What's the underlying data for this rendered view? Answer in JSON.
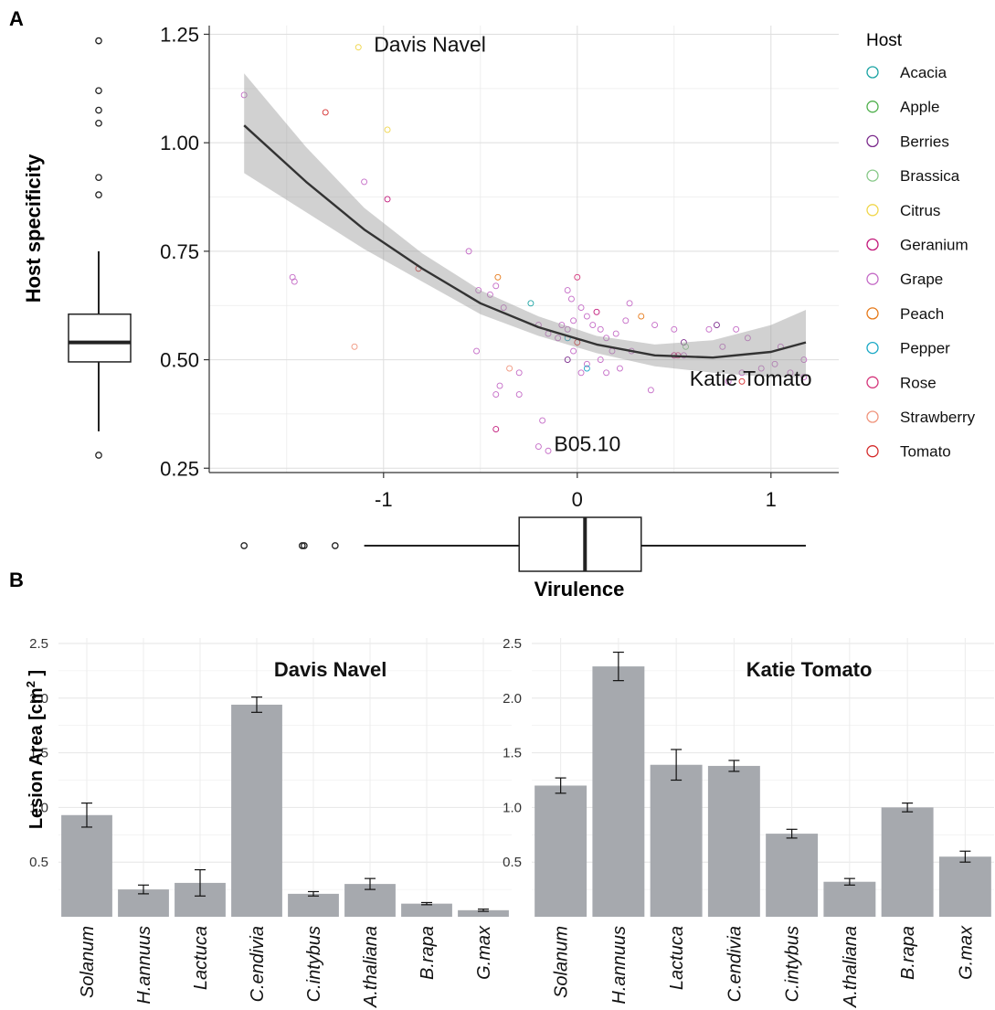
{
  "chart_data": [
    {
      "panel_label": "A",
      "type": "scatter",
      "xlabel": "Virulence",
      "ylabel": "Host specificity",
      "xlim": [
        -1.9,
        1.35
      ],
      "ylim": [
        0.24,
        1.27
      ],
      "x_ticks": [
        {
          "v": -1,
          "label": "-1"
        },
        {
          "v": 0,
          "label": "0"
        },
        {
          "v": 1,
          "label": "1"
        }
      ],
      "y_ticks": [
        {
          "v": 0.25,
          "label": "0.25"
        },
        {
          "v": 0.5,
          "label": "0.50"
        },
        {
          "v": 0.75,
          "label": "0.75"
        },
        {
          "v": 1.0,
          "label": "1.00"
        },
        {
          "v": 1.25,
          "label": "1.25"
        }
      ],
      "grid": true,
      "legend": {
        "title": "Host",
        "placement": "right",
        "entries": [
          {
            "name": "Acacia",
            "color": "#1aa3a3"
          },
          {
            "name": "Apple",
            "color": "#4daf4a"
          },
          {
            "name": "Berries",
            "color": "#7b2a8c"
          },
          {
            "name": "Brassica",
            "color": "#88c989"
          },
          {
            "name": "Citrus",
            "color": "#f0d64a"
          },
          {
            "name": "Geranium",
            "color": "#c2187a"
          },
          {
            "name": "Grape",
            "color": "#c46ac6"
          },
          {
            "name": "Peach",
            "color": "#e67817"
          },
          {
            "name": "Pepper",
            "color": "#1ba9c6"
          },
          {
            "name": "Rose",
            "color": "#d4347a"
          },
          {
            "name": "Strawberry",
            "color": "#f0957d"
          },
          {
            "name": "Tomato",
            "color": "#d42a2a"
          }
        ]
      },
      "annotations": [
        {
          "text": "Davis Navel",
          "x": -1.05,
          "y": 1.21
        },
        {
          "text": "Katie Tomato",
          "x": 0.58,
          "y": 0.44
        },
        {
          "text": "B05.10",
          "x": -0.12,
          "y": 0.29
        }
      ],
      "fit": {
        "x": [
          -1.72,
          -1.4,
          -1.1,
          -0.8,
          -0.5,
          -0.2,
          0.1,
          0.4,
          0.7,
          1.0,
          1.18
        ],
        "y": [
          1.04,
          0.91,
          0.8,
          0.71,
          0.63,
          0.575,
          0.535,
          0.51,
          0.505,
          0.518,
          0.54
        ],
        "lower": [
          0.93,
          0.84,
          0.755,
          0.68,
          0.605,
          0.555,
          0.515,
          0.485,
          0.47,
          0.46,
          0.46
        ],
        "upper": [
          1.16,
          0.99,
          0.85,
          0.745,
          0.66,
          0.6,
          0.555,
          0.535,
          0.545,
          0.58,
          0.615
        ]
      },
      "points": [
        {
          "x": -1.13,
          "y": 1.22,
          "host": "Citrus"
        },
        {
          "x": -1.72,
          "y": 1.11,
          "host": "Grape"
        },
        {
          "x": -1.3,
          "y": 1.07,
          "host": "Tomato"
        },
        {
          "x": -0.98,
          "y": 1.03,
          "host": "Citrus"
        },
        {
          "x": -1.1,
          "y": 0.91,
          "host": "Grape"
        },
        {
          "x": -0.98,
          "y": 0.87,
          "host": "Geranium"
        },
        {
          "x": -1.47,
          "y": 0.69,
          "host": "Grape"
        },
        {
          "x": -1.46,
          "y": 0.68,
          "host": "Grape"
        },
        {
          "x": -1.15,
          "y": 0.53,
          "host": "Strawberry"
        },
        {
          "x": -0.82,
          "y": 0.71,
          "host": "Tomato"
        },
        {
          "x": -0.56,
          "y": 0.75,
          "host": "Grape"
        },
        {
          "x": -0.51,
          "y": 0.66,
          "host": "Grape"
        },
        {
          "x": -0.45,
          "y": 0.65,
          "host": "Grape"
        },
        {
          "x": -0.41,
          "y": 0.69,
          "host": "Peach"
        },
        {
          "x": -0.52,
          "y": 0.52,
          "host": "Grape"
        },
        {
          "x": -0.42,
          "y": 0.67,
          "host": "Grape"
        },
        {
          "x": -0.38,
          "y": 0.62,
          "host": "Grape"
        },
        {
          "x": -0.35,
          "y": 0.48,
          "host": "Strawberry"
        },
        {
          "x": -0.4,
          "y": 0.44,
          "host": "Grape"
        },
        {
          "x": -0.42,
          "y": 0.42,
          "host": "Grape"
        },
        {
          "x": -0.3,
          "y": 0.47,
          "host": "Grape"
        },
        {
          "x": -0.3,
          "y": 0.42,
          "host": "Grape"
        },
        {
          "x": -0.42,
          "y": 0.34,
          "host": "Geranium"
        },
        {
          "x": -0.18,
          "y": 0.36,
          "host": "Grape"
        },
        {
          "x": -0.2,
          "y": 0.3,
          "host": "Grape"
        },
        {
          "x": -0.15,
          "y": 0.29,
          "host": "Grape"
        },
        {
          "x": -0.24,
          "y": 0.63,
          "host": "Acacia"
        },
        {
          "x": -0.05,
          "y": 0.66,
          "host": "Grape"
        },
        {
          "x": -0.03,
          "y": 0.64,
          "host": "Grape"
        },
        {
          "x": -0.2,
          "y": 0.58,
          "host": "Grape"
        },
        {
          "x": -0.15,
          "y": 0.56,
          "host": "Grape"
        },
        {
          "x": -0.1,
          "y": 0.55,
          "host": "Grape"
        },
        {
          "x": -0.08,
          "y": 0.58,
          "host": "Grape"
        },
        {
          "x": -0.05,
          "y": 0.57,
          "host": "Grape"
        },
        {
          "x": -0.05,
          "y": 0.55,
          "host": "Pepper"
        },
        {
          "x": -0.02,
          "y": 0.59,
          "host": "Grape"
        },
        {
          "x": 0.0,
          "y": 0.69,
          "host": "Rose"
        },
        {
          "x": 0.02,
          "y": 0.62,
          "host": "Grape"
        },
        {
          "x": 0.05,
          "y": 0.6,
          "host": "Grape"
        },
        {
          "x": 0.08,
          "y": 0.58,
          "host": "Grape"
        },
        {
          "x": 0.1,
          "y": 0.61,
          "host": "Geranium"
        },
        {
          "x": 0.12,
          "y": 0.57,
          "host": "Grape"
        },
        {
          "x": 0.15,
          "y": 0.55,
          "host": "Grape"
        },
        {
          "x": 0.2,
          "y": 0.56,
          "host": "Grape"
        },
        {
          "x": 0.25,
          "y": 0.59,
          "host": "Grape"
        },
        {
          "x": 0.27,
          "y": 0.63,
          "host": "Grape"
        },
        {
          "x": 0.33,
          "y": 0.6,
          "host": "Peach"
        },
        {
          "x": 0.0,
          "y": 0.54,
          "host": "Tomato"
        },
        {
          "x": -0.05,
          "y": 0.5,
          "host": "Berries"
        },
        {
          "x": -0.02,
          "y": 0.52,
          "host": "Grape"
        },
        {
          "x": 0.05,
          "y": 0.49,
          "host": "Grape"
        },
        {
          "x": 0.05,
          "y": 0.48,
          "host": "Pepper"
        },
        {
          "x": 0.02,
          "y": 0.47,
          "host": "Grape"
        },
        {
          "x": 0.12,
          "y": 0.5,
          "host": "Grape"
        },
        {
          "x": 0.15,
          "y": 0.47,
          "host": "Grape"
        },
        {
          "x": 0.18,
          "y": 0.52,
          "host": "Grape"
        },
        {
          "x": 0.22,
          "y": 0.48,
          "host": "Grape"
        },
        {
          "x": 0.28,
          "y": 0.52,
          "host": "Grape"
        },
        {
          "x": 0.38,
          "y": 0.43,
          "host": "Grape"
        },
        {
          "x": 0.4,
          "y": 0.58,
          "host": "Grape"
        },
        {
          "x": 0.5,
          "y": 0.57,
          "host": "Grape"
        },
        {
          "x": 0.5,
          "y": 0.51,
          "host": "Geranium"
        },
        {
          "x": 0.52,
          "y": 0.51,
          "host": "Rose"
        },
        {
          "x": 0.55,
          "y": 0.51,
          "host": "Grape"
        },
        {
          "x": 0.55,
          "y": 0.54,
          "host": "Berries"
        },
        {
          "x": 0.56,
          "y": 0.53,
          "host": "Brassica"
        },
        {
          "x": 0.68,
          "y": 0.57,
          "host": "Grape"
        },
        {
          "x": 0.72,
          "y": 0.58,
          "host": "Berries"
        },
        {
          "x": 0.75,
          "y": 0.53,
          "host": "Grape"
        },
        {
          "x": 0.82,
          "y": 0.57,
          "host": "Grape"
        },
        {
          "x": 0.88,
          "y": 0.55,
          "host": "Grape"
        },
        {
          "x": 0.85,
          "y": 0.47,
          "host": "Grape"
        },
        {
          "x": 0.85,
          "y": 0.45,
          "host": "Tomato"
        },
        {
          "x": 0.78,
          "y": 0.45,
          "host": "Grape"
        },
        {
          "x": 0.95,
          "y": 0.48,
          "host": "Grape"
        },
        {
          "x": 1.02,
          "y": 0.49,
          "host": "Grape"
        },
        {
          "x": 1.05,
          "y": 0.53,
          "host": "Grape"
        },
        {
          "x": 1.1,
          "y": 0.47,
          "host": "Grape"
        },
        {
          "x": 1.17,
          "y": 0.5,
          "host": "Grape"
        },
        {
          "x": 1.17,
          "y": 0.46,
          "host": "Grape"
        }
      ],
      "boxplot_y": {
        "min": 0.335,
        "q1": 0.495,
        "median": 0.54,
        "q3": 0.605,
        "max": 0.75,
        "outliers": [
          0.28,
          0.88,
          0.92,
          1.045,
          1.075,
          1.12,
          1.235
        ]
      },
      "boxplot_x": {
        "min": -1.1,
        "q1": -0.3,
        "median": 0.04,
        "q3": 0.33,
        "max": 1.18,
        "outliers": [
          -1.72,
          -1.42,
          -1.41,
          -1.25
        ]
      }
    },
    {
      "panel_label": "B",
      "type": "bar",
      "title": "Davis Navel",
      "ylabel": "Lesion Area [cm² ]",
      "ylabel_parts": {
        "pre": "Lesion Area [cm",
        "sup": "2",
        "post": " ]"
      },
      "categories": [
        "Solanum",
        "H.annuus",
        "Lactuca",
        "C.endivia",
        "C.intybus",
        "A.thaliana",
        "B.rapa",
        "G.max"
      ],
      "values": [
        0.93,
        0.25,
        0.31,
        1.94,
        0.21,
        0.3,
        0.12,
        0.06
      ],
      "errors": [
        0.11,
        0.04,
        0.12,
        0.07,
        0.02,
        0.05,
        0.01,
        0.01
      ],
      "ylim": [
        0,
        2.55
      ],
      "y_ticks": [
        {
          "v": 0.5,
          "label": "0.5"
        },
        {
          "v": 1.0,
          "label": "1.0"
        },
        {
          "v": 1.5,
          "label": "1.5"
        },
        {
          "v": 2.0,
          "label": "2.0"
        },
        {
          "v": 2.5,
          "label": "2.5"
        }
      ],
      "bar_color": "#a6a9ae",
      "grid": true
    },
    {
      "type": "bar",
      "title": "Katie Tomato",
      "categories": [
        "Solanum",
        "H.annuus",
        "Lactuca",
        "C.endivia",
        "C.intybus",
        "A.thaliana",
        "B.rapa",
        "G.max"
      ],
      "values": [
        1.2,
        2.29,
        1.39,
        1.38,
        0.76,
        0.32,
        1.0,
        0.55
      ],
      "errors": [
        0.07,
        0.13,
        0.14,
        0.05,
        0.04,
        0.03,
        0.04,
        0.05
      ],
      "ylim": [
        0,
        2.55
      ],
      "y_ticks": [
        {
          "v": 0.5,
          "label": "0.5"
        },
        {
          "v": 1.0,
          "label": "1.0"
        },
        {
          "v": 1.5,
          "label": "1.5"
        },
        {
          "v": 2.0,
          "label": "2.0"
        },
        {
          "v": 2.5,
          "label": "2.5"
        }
      ],
      "bar_color": "#a6a9ae",
      "grid": true
    }
  ]
}
